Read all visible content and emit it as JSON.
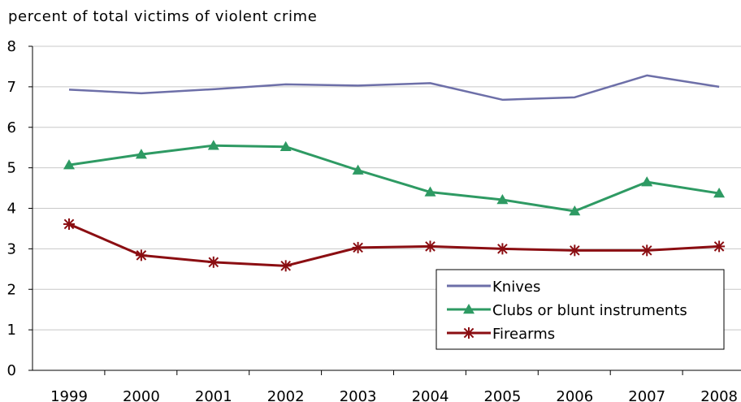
{
  "chart_data": {
    "type": "line",
    "title": "percent of total victims of violent crime",
    "xlabel": "",
    "ylabel": "",
    "ylim": [
      0,
      8
    ],
    "y_ticks": [
      "0",
      "1",
      "2",
      "3",
      "4",
      "5",
      "6",
      "7",
      "8"
    ],
    "categories": [
      "1999",
      "2000",
      "2001",
      "2002",
      "2003",
      "2004",
      "2005",
      "2006",
      "2007",
      "2008"
    ],
    "grid": "horizontal",
    "legend_position": "bottom-right",
    "series": [
      {
        "name": "Knives",
        "color": "#6d6fa8",
        "marker": "none",
        "values": [
          6.93,
          6.84,
          6.94,
          7.06,
          7.03,
          7.09,
          6.68,
          6.74,
          7.28,
          7.0
        ]
      },
      {
        "name": "Clubs or blunt instruments",
        "color": "#2e9a63",
        "marker": "triangle",
        "values": [
          5.07,
          5.33,
          5.55,
          5.52,
          4.94,
          4.4,
          4.21,
          3.93,
          4.65,
          4.37
        ]
      },
      {
        "name": "Firearms",
        "color": "#8b0e12",
        "marker": "star",
        "values": [
          3.61,
          2.84,
          2.67,
          2.58,
          3.03,
          3.06,
          3.0,
          2.96,
          2.96,
          3.06
        ]
      }
    ]
  }
}
